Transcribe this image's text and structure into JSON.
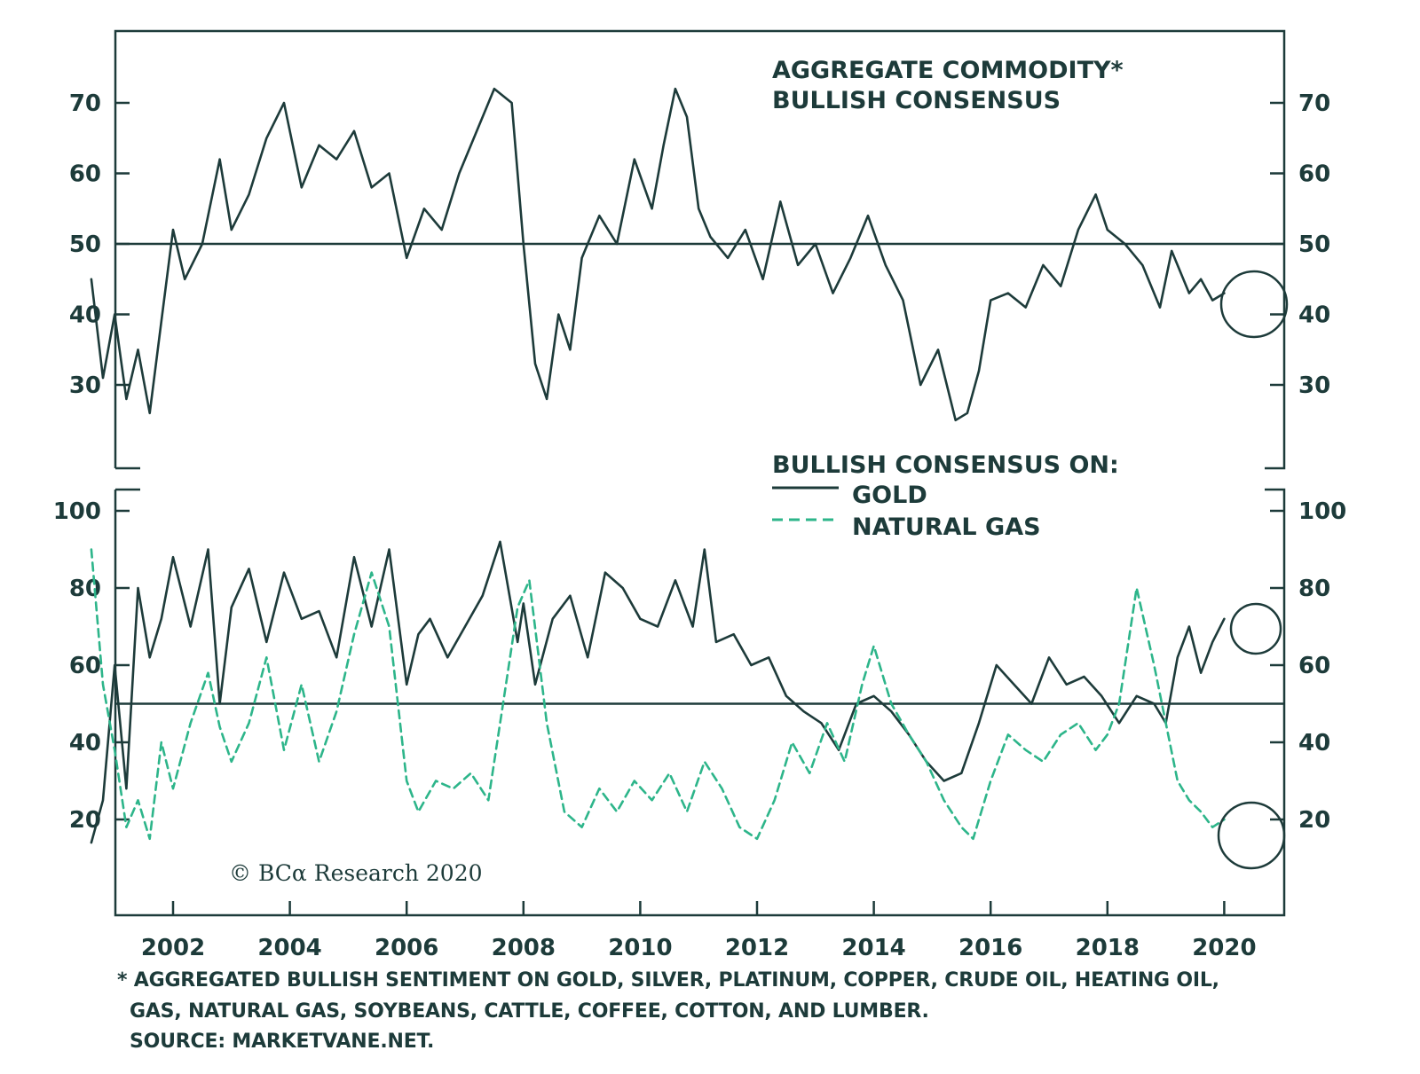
{
  "chart_data": [
    {
      "type": "line",
      "title": "AGGREGATE COMMODITY* BULLISH CONSENSUS",
      "title_lines": [
        "AGGREGATE COMMODITY*",
        "BULLISH CONSENSUS"
      ],
      "ylim": [
        20,
        80
      ],
      "yticks": [
        30,
        40,
        50,
        60,
        70
      ],
      "reference_line": 50,
      "series": [
        {
          "name": "",
          "color": "#1d3b3a",
          "style": "solid",
          "x": [
            2000.6,
            2000.8,
            2001.0,
            2001.2,
            2001.4,
            2001.6,
            2001.8,
            2002.0,
            2002.2,
            2002.5,
            2002.8,
            2003.0,
            2003.3,
            2003.6,
            2003.9,
            2004.2,
            2004.5,
            2004.8,
            2005.1,
            2005.4,
            2005.7,
            2006.0,
            2006.3,
            2006.6,
            2006.9,
            2007.2,
            2007.5,
            2007.8,
            2008.0,
            2008.2,
            2008.4,
            2008.6,
            2008.8,
            2009.0,
            2009.3,
            2009.6,
            2009.9,
            2010.2,
            2010.4,
            2010.6,
            2010.8,
            2011.0,
            2011.2,
            2011.5,
            2011.8,
            2012.1,
            2012.4,
            2012.7,
            2013.0,
            2013.3,
            2013.6,
            2013.9,
            2014.2,
            2014.5,
            2014.8,
            2015.1,
            2015.4,
            2015.6,
            2015.8,
            2016.0,
            2016.3,
            2016.6,
            2016.9,
            2017.2,
            2017.5,
            2017.8,
            2018.0,
            2018.3,
            2018.6,
            2018.9,
            2019.1,
            2019.4,
            2019.6,
            2019.8,
            2020.0
          ],
          "y": [
            45,
            31,
            40,
            28,
            35,
            26,
            39,
            52,
            45,
            50,
            62,
            52,
            57,
            65,
            70,
            58,
            64,
            62,
            66,
            58,
            60,
            48,
            55,
            52,
            60,
            66,
            72,
            70,
            50,
            33,
            28,
            40,
            35,
            48,
            54,
            50,
            62,
            55,
            64,
            72,
            68,
            55,
            51,
            48,
            52,
            45,
            56,
            47,
            50,
            43,
            48,
            54,
            47,
            42,
            30,
            35,
            25,
            26,
            32,
            42,
            43,
            41,
            47,
            44,
            52,
            57,
            52,
            50,
            47,
            41,
            49,
            43,
            45,
            42,
            43
          ]
        }
      ]
    },
    {
      "type": "line",
      "title": "BULLISH CONSENSUS ON:",
      "ylim": [
        0,
        110
      ],
      "yticks": [
        20,
        40,
        60,
        80,
        100
      ],
      "reference_line": 50,
      "series": [
        {
          "name": "GOLD",
          "color": "#1d3b3a",
          "style": "solid",
          "x": [
            2000.6,
            2000.8,
            2001.0,
            2001.2,
            2001.4,
            2001.6,
            2001.8,
            2002.0,
            2002.3,
            2002.6,
            2002.8,
            2003.0,
            2003.3,
            2003.6,
            2003.9,
            2004.2,
            2004.5,
            2004.8,
            2005.1,
            2005.4,
            2005.7,
            2006.0,
            2006.2,
            2006.4,
            2006.7,
            2007.0,
            2007.3,
            2007.6,
            2007.9,
            2008.0,
            2008.2,
            2008.5,
            2008.8,
            2009.1,
            2009.4,
            2009.7,
            2010.0,
            2010.3,
            2010.6,
            2010.9,
            2011.1,
            2011.3,
            2011.6,
            2011.9,
            2012.2,
            2012.5,
            2012.8,
            2013.1,
            2013.4,
            2013.7,
            2014.0,
            2014.3,
            2014.6,
            2014.9,
            2015.2,
            2015.5,
            2015.8,
            2016.1,
            2016.4,
            2016.7,
            2017.0,
            2017.3,
            2017.6,
            2017.9,
            2018.2,
            2018.5,
            2018.8,
            2019.0,
            2019.2,
            2019.4,
            2019.6,
            2019.8,
            2020.0
          ],
          "y": [
            14,
            25,
            60,
            28,
            80,
            62,
            72,
            88,
            70,
            90,
            50,
            75,
            85,
            66,
            84,
            72,
            74,
            62,
            88,
            70,
            90,
            55,
            68,
            72,
            62,
            70,
            78,
            92,
            66,
            76,
            55,
            72,
            78,
            62,
            84,
            80,
            72,
            70,
            82,
            70,
            90,
            66,
            68,
            60,
            62,
            52,
            48,
            45,
            38,
            50,
            52,
            48,
            42,
            35,
            30,
            32,
            45,
            60,
            55,
            50,
            62,
            55,
            57,
            52,
            45,
            52,
            50,
            45,
            62,
            70,
            58,
            66,
            72
          ]
        },
        {
          "name": "NATURAL GAS",
          "color": "#2db58a",
          "style": "dashed",
          "x": [
            2000.6,
            2000.8,
            2001.0,
            2001.2,
            2001.4,
            2001.6,
            2001.8,
            2002.0,
            2002.3,
            2002.6,
            2002.8,
            2003.0,
            2003.3,
            2003.6,
            2003.9,
            2004.2,
            2004.5,
            2004.8,
            2005.1,
            2005.4,
            2005.7,
            2006.0,
            2006.2,
            2006.5,
            2006.8,
            2007.1,
            2007.4,
            2007.7,
            2007.9,
            2008.1,
            2008.4,
            2008.7,
            2009.0,
            2009.3,
            2009.6,
            2009.9,
            2010.2,
            2010.5,
            2010.8,
            2011.1,
            2011.4,
            2011.7,
            2012.0,
            2012.3,
            2012.6,
            2012.9,
            2013.2,
            2013.5,
            2013.8,
            2014.0,
            2014.3,
            2014.6,
            2014.9,
            2015.2,
            2015.5,
            2015.7,
            2016.0,
            2016.3,
            2016.6,
            2016.9,
            2017.2,
            2017.5,
            2017.8,
            2018.0,
            2018.2,
            2018.5,
            2018.8,
            2019.0,
            2019.2,
            2019.4,
            2019.6,
            2019.8,
            2020.0
          ],
          "y": [
            90,
            55,
            38,
            18,
            25,
            15,
            40,
            28,
            45,
            58,
            44,
            35,
            45,
            62,
            38,
            55,
            35,
            48,
            68,
            84,
            70,
            30,
            22,
            30,
            28,
            32,
            25,
            55,
            75,
            82,
            45,
            22,
            18,
            28,
            22,
            30,
            25,
            32,
            22,
            35,
            28,
            18,
            15,
            25,
            40,
            32,
            45,
            35,
            55,
            65,
            50,
            42,
            35,
            25,
            18,
            15,
            30,
            42,
            38,
            35,
            42,
            45,
            38,
            42,
            50,
            80,
            60,
            45,
            30,
            25,
            22,
            18,
            20
          ]
        }
      ]
    }
  ],
  "x_axis": {
    "xlim": [
      2000.5,
      2020.5
    ],
    "tick_labels": [
      "2002",
      "2004",
      "2006",
      "2008",
      "2010",
      "2012",
      "2014",
      "2016",
      "2018",
      "2020"
    ]
  },
  "legend": {
    "header": "BULLISH CONSENSUS ON:",
    "items": [
      "GOLD",
      "NATURAL GAS"
    ],
    "placement": "top-right of bottom panel"
  },
  "copyright": "© BCα Research 2020",
  "footnote": {
    "line1": "* AGGREGATED BULLISH SENTIMENT ON GOLD, SILVER, PLATINUM, COPPER, CRUDE OIL, HEATING OIL,",
    "line2": "GAS, NATURAL GAS, SOYBEANS, CATTLE, COFFEE, COTTON, AND LUMBER.",
    "line3": "SOURCE: MARKETVANE.NET."
  },
  "colors": {
    "primary": "#1d3b3a",
    "accent": "#2db58a"
  }
}
